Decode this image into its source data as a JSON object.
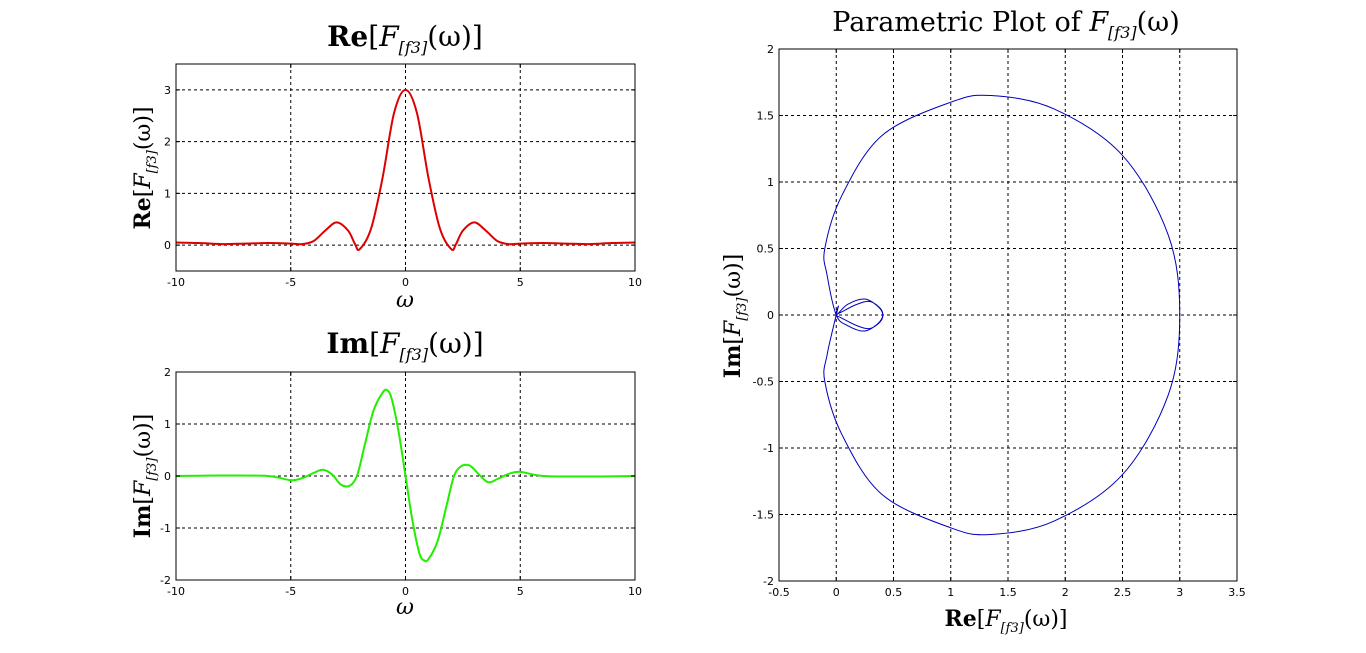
{
  "chart_data": [
    {
      "type": "line",
      "title": {
        "main": "Re",
        "open": "[",
        "func": "F",
        "sub": "[f3]",
        "arg": "(ω)]"
      },
      "xlabel": "ω",
      "ylabel": {
        "main": "Re",
        "open": "[",
        "func": "F",
        "sub": "[f3]",
        "arg": "(ω)]"
      },
      "xlim": [
        -10,
        10
      ],
      "ylim": [
        -0.5,
        3.5
      ],
      "xticks": [
        -10,
        -5,
        0,
        5,
        10
      ],
      "yticks": [
        0,
        1,
        2,
        3
      ],
      "grid": true,
      "series": [
        {
          "color": "#dd0000",
          "x": [
            -10,
            -9,
            -8,
            -7,
            -6,
            -5,
            -4.5,
            -4,
            -3.5,
            -3,
            -2.5,
            -2.2,
            -2,
            -1.5,
            -1,
            -0.5,
            0,
            0.5,
            1,
            1.5,
            2,
            2.2,
            2.5,
            3,
            3.5,
            4,
            4.5,
            5,
            6,
            7,
            8,
            9,
            10
          ],
          "y": [
            0.05,
            0.04,
            0.02,
            0.03,
            0.04,
            0.03,
            0.02,
            0.08,
            0.28,
            0.44,
            0.28,
            0.02,
            -0.08,
            0.32,
            1.3,
            2.55,
            3.0,
            2.55,
            1.3,
            0.32,
            -0.08,
            0.02,
            0.28,
            0.44,
            0.28,
            0.08,
            0.02,
            0.03,
            0.04,
            0.03,
            0.02,
            0.04,
            0.05
          ]
        }
      ]
    },
    {
      "type": "line",
      "title": {
        "main": "Im",
        "open": "[",
        "func": "F",
        "sub": "[f3]",
        "arg": "(ω)]"
      },
      "xlabel": "ω",
      "ylabel": {
        "main": "Im",
        "open": "[",
        "func": "F",
        "sub": "[f3]",
        "arg": "(ω)]"
      },
      "xlim": [
        -10,
        10
      ],
      "ylim": [
        -2,
        2
      ],
      "xticks": [
        -10,
        -5,
        0,
        5,
        10
      ],
      "yticks": [
        -2,
        -1,
        0,
        1,
        2
      ],
      "grid": true,
      "series": [
        {
          "color": "#22ee00",
          "x": [
            -10,
            -8,
            -6,
            -5,
            -4.5,
            -4,
            -3.6,
            -3.2,
            -2.8,
            -2.4,
            -2.1,
            -1.8,
            -1.4,
            -1,
            -0.8,
            -0.6,
            -0.3,
            0,
            0.3,
            0.6,
            0.8,
            1,
            1.4,
            1.8,
            2.1,
            2.4,
            2.8,
            3.2,
            3.6,
            4,
            4.5,
            5,
            6,
            8,
            10
          ],
          "y": [
            0.0,
            0.01,
            0.0,
            -0.08,
            -0.04,
            0.06,
            0.12,
            0.03,
            -0.17,
            -0.18,
            0.02,
            0.55,
            1.25,
            1.6,
            1.65,
            1.48,
            0.85,
            0.0,
            -0.85,
            -1.48,
            -1.62,
            -1.6,
            -1.25,
            -0.55,
            -0.02,
            0.18,
            0.2,
            0.03,
            -0.12,
            -0.06,
            0.04,
            0.08,
            0.0,
            -0.01,
            0.0
          ]
        }
      ]
    },
    {
      "type": "line",
      "title": {
        "prefix": "Parametric Plot of ",
        "func": "F",
        "sub": "[f3]",
        "arg": "(ω)"
      },
      "xlabel": {
        "main": "Re",
        "open": "[",
        "func": "F",
        "sub": "[f3]",
        "arg": "(ω)]"
      },
      "ylabel": {
        "main": "Im",
        "open": "[",
        "func": "F",
        "sub": "[f3]",
        "arg": "(ω)]"
      },
      "xlim": [
        -0.5,
        3.5
      ],
      "ylim": [
        -2,
        2
      ],
      "xticks": [
        -0.5,
        0,
        0.5,
        1,
        1.5,
        2,
        2.5,
        3,
        3.5
      ],
      "yticks": [
        -2,
        -1.5,
        -1,
        -0.5,
        0,
        0.5,
        1,
        1.5,
        2
      ],
      "grid": true,
      "series": [
        {
          "color": "#0000bb",
          "curve": "parametric",
          "x": [
            0.0,
            -0.08,
            -0.1,
            0.05,
            0.4,
            1.0,
            1.35,
            1.9,
            2.5,
            2.9,
            3.0,
            2.9,
            2.5,
            1.9,
            1.35,
            1.0,
            0.4,
            0.05,
            -0.1,
            -0.08,
            0.0,
            0.1,
            0.25,
            0.38,
            0.4,
            0.3,
            0.18,
            0.04,
            0.0,
            0.04,
            0.18,
            0.3,
            0.4,
            0.38,
            0.25,
            0.1,
            0.0,
            0.02,
            0.0,
            -0.02,
            0.0
          ],
          "y": [
            0.0,
            -0.3,
            -0.5,
            -0.9,
            -1.35,
            -1.6,
            -1.65,
            -1.55,
            -1.2,
            -0.6,
            0.0,
            0.6,
            1.2,
            1.55,
            1.65,
            1.6,
            1.35,
            0.9,
            0.5,
            0.3,
            0.0,
            -0.08,
            -0.12,
            -0.05,
            0.03,
            0.1,
            0.08,
            0.02,
            0.0,
            -0.02,
            -0.08,
            -0.1,
            -0.03,
            0.05,
            0.12,
            0.08,
            0.0,
            0.07,
            0.0,
            -0.07,
            0.0
          ]
        }
      ]
    }
  ]
}
